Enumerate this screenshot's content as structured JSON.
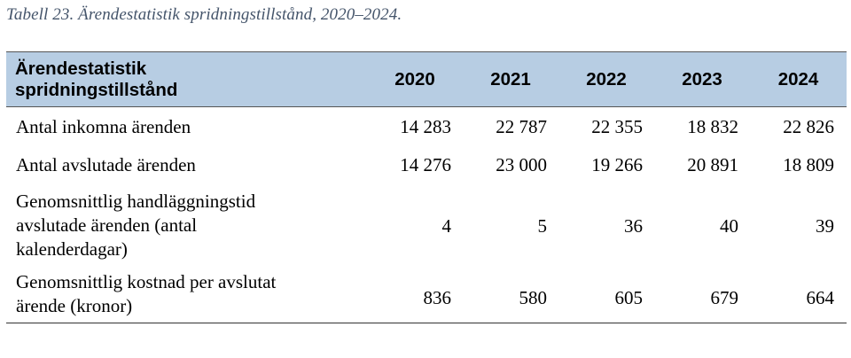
{
  "table_caption": "Tabell 23. Ärendestatistik spridningstillstånd, 2020–2024.",
  "table": {
    "header_label": "Ärendestatistik\nspridningstillstånd",
    "years": [
      "2020",
      "2021",
      "2022",
      "2023",
      "2024"
    ],
    "rows": [
      {
        "label": "Antal inkomna ärenden",
        "values": [
          "14 283",
          "22 787",
          "22 355",
          "18 832",
          "22 826"
        ]
      },
      {
        "label": "Antal avslutade ärenden",
        "values": [
          "14 276",
          "23 000",
          "19 266",
          "20 891",
          "18 809"
        ]
      },
      {
        "label": "Genomsnittlig handläggningstid\navslutade ärenden (antal\nkalenderdagar)",
        "values": [
          "4",
          "5",
          "36",
          "40",
          "39"
        ]
      },
      {
        "label": "Genomsnittlig kostnad per avslutat\närende (kronor)",
        "values": [
          "836",
          "580",
          "605",
          "679",
          "664"
        ]
      }
    ]
  },
  "colors": {
    "caption_text": "#44546a",
    "header_background": "#b7cde3",
    "rule": "#333333"
  }
}
